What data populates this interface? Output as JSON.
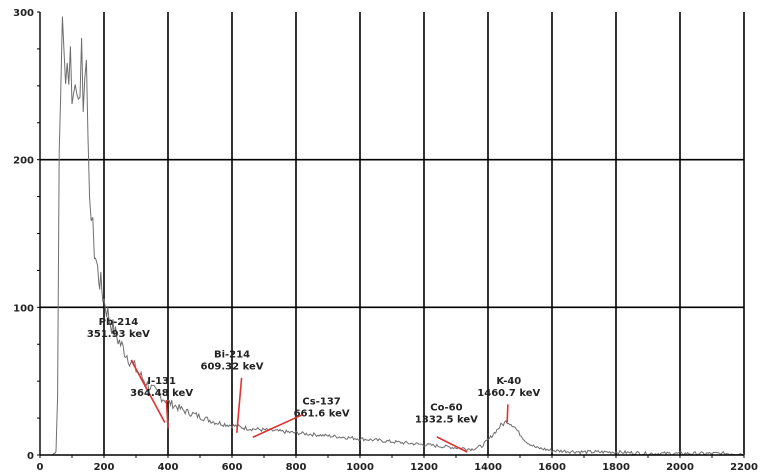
{
  "chart_data": {
    "type": "line",
    "title": "",
    "xlabel": "",
    "ylabel": "",
    "xlim": [
      0,
      2200
    ],
    "ylim": [
      0,
      300
    ],
    "x_ticks": [
      "0",
      "200",
      "400",
      "600",
      "800",
      "1000",
      "1200",
      "1400",
      "1600",
      "1800",
      "2000",
      "2200"
    ],
    "y_ticks": [
      "0",
      "100",
      "200",
      "300"
    ],
    "grid": true,
    "series": [
      {
        "color": "#6e6e6e",
        "x": [
          40,
          50,
          55,
          60,
          65,
          70,
          75,
          80,
          85,
          90,
          95,
          100,
          105,
          110,
          115,
          120,
          125,
          130,
          135,
          140,
          145,
          150,
          155,
          160,
          165,
          170,
          180,
          190,
          200,
          220,
          240,
          260,
          280,
          300,
          320,
          340,
          360,
          380,
          400,
          450,
          500,
          550,
          600,
          650,
          700,
          750,
          800,
          900,
          1000,
          1100,
          1200,
          1300,
          1350,
          1380,
          1400,
          1420,
          1440,
          1460,
          1480,
          1500,
          1520,
          1550,
          1600,
          1700,
          1800,
          1900,
          2000,
          2100,
          2200
        ],
        "y": [
          0,
          3,
          40,
          205,
          265,
          280,
          270,
          255,
          275,
          240,
          270,
          255,
          245,
          262,
          238,
          255,
          240,
          283,
          245,
          275,
          250,
          200,
          185,
          160,
          150,
          140,
          125,
          115,
          105,
          90,
          80,
          72,
          65,
          58,
          52,
          47,
          43,
          39,
          36,
          30,
          26,
          22,
          20,
          18,
          17,
          16,
          15,
          13,
          11,
          9,
          7,
          5,
          4,
          6,
          10,
          15,
          20,
          23,
          20,
          14,
          9,
          5,
          3,
          2,
          2,
          1,
          1,
          1,
          1
        ]
      }
    ],
    "annotations": [
      {
        "line1": "Pb-214",
        "line2": "351.93 keV",
        "color": "#e03030"
      },
      {
        "line1": "I-131",
        "line2": "364.48 keV",
        "color": "#e03030"
      },
      {
        "line1": "Bi-214",
        "line2": "609.32 keV",
        "color": "#e03030"
      },
      {
        "line1": "Cs-137",
        "line2": "661.6 keV",
        "color": "#e03030"
      },
      {
        "line1": "Co-60",
        "line2": "1332.5 keV",
        "color": "#e03030"
      },
      {
        "line1": "K-40",
        "line2": "1460.7 keV",
        "color": "#e03030"
      }
    ]
  }
}
